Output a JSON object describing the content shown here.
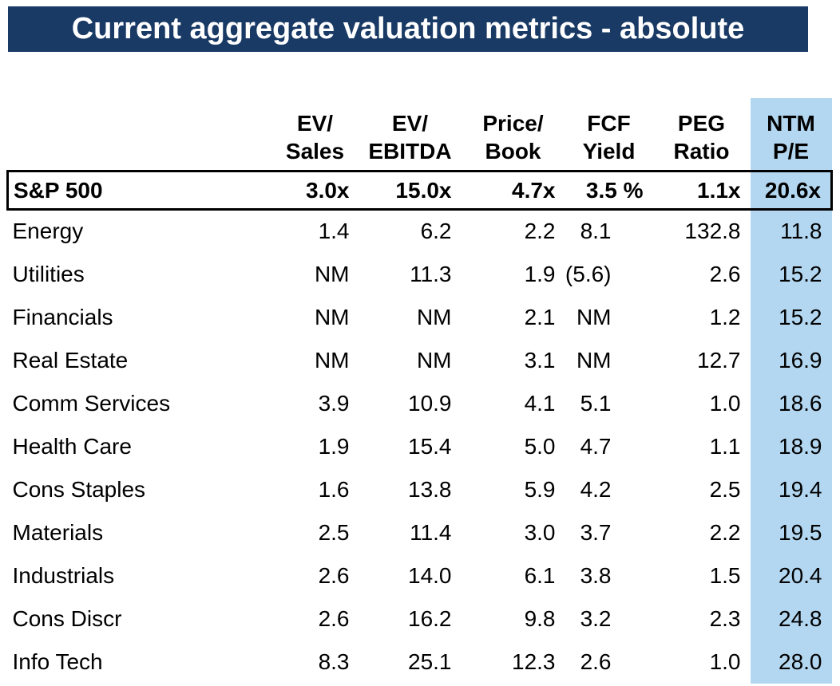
{
  "title": "Current aggregate valuation metrics - absolute",
  "colors": {
    "title_bar_bg": "#1a3a66",
    "title_text": "#ffffff",
    "highlight_column_bg": "#b3d7f1",
    "table_text": "#000000",
    "benchmark_box_border": "#000000"
  },
  "chart_data": {
    "type": "table",
    "title": "Current aggregate valuation metrics - absolute",
    "highlight_column": "NTM P/E",
    "column_headers": [
      {
        "line1": "EV/",
        "line2": "Sales"
      },
      {
        "line1": "EV/",
        "line2": "EBITDA"
      },
      {
        "line1": "Price/",
        "line2": "Book"
      },
      {
        "line1": "FCF",
        "line2": "Yield"
      },
      {
        "line1": "PEG",
        "line2": "Ratio"
      },
      {
        "line1": "NTM",
        "line2": "P/E"
      }
    ],
    "benchmark_row": {
      "label": "S&P 500",
      "values": [
        "3.0x",
        "15.0x",
        "4.7x",
        "3.5 %",
        "1.1x",
        "20.6x"
      ]
    },
    "rows": [
      {
        "label": "Energy",
        "values": [
          "1.4",
          "6.2",
          "2.2",
          "8.1",
          "132.8",
          "11.8"
        ]
      },
      {
        "label": "Utilities",
        "values": [
          "NM",
          "11.3",
          "1.9",
          "(5.6)",
          "2.6",
          "15.2"
        ]
      },
      {
        "label": "Financials",
        "values": [
          "NM",
          "NM",
          "2.1",
          "NM",
          "1.2",
          "15.2"
        ]
      },
      {
        "label": "Real Estate",
        "values": [
          "NM",
          "NM",
          "3.1",
          "NM",
          "12.7",
          "16.9"
        ]
      },
      {
        "label": "Comm Services",
        "values": [
          "3.9",
          "10.9",
          "4.1",
          "5.1",
          "1.0",
          "18.6"
        ]
      },
      {
        "label": "Health Care",
        "values": [
          "1.9",
          "15.4",
          "5.0",
          "4.7",
          "1.1",
          "18.9"
        ]
      },
      {
        "label": "Cons Staples",
        "values": [
          "1.6",
          "13.8",
          "5.9",
          "4.2",
          "2.5",
          "19.4"
        ]
      },
      {
        "label": "Materials",
        "values": [
          "2.5",
          "11.4",
          "3.0",
          "3.7",
          "2.2",
          "19.5"
        ]
      },
      {
        "label": "Industrials",
        "values": [
          "2.6",
          "14.0",
          "6.1",
          "3.8",
          "1.5",
          "20.4"
        ]
      },
      {
        "label": "Cons Discr",
        "values": [
          "2.6",
          "16.2",
          "9.8",
          "3.2",
          "2.3",
          "24.8"
        ]
      },
      {
        "label": "Info Tech",
        "values": [
          "8.3",
          "25.1",
          "12.3",
          "2.6",
          "1.0",
          "28.0"
        ]
      }
    ]
  }
}
